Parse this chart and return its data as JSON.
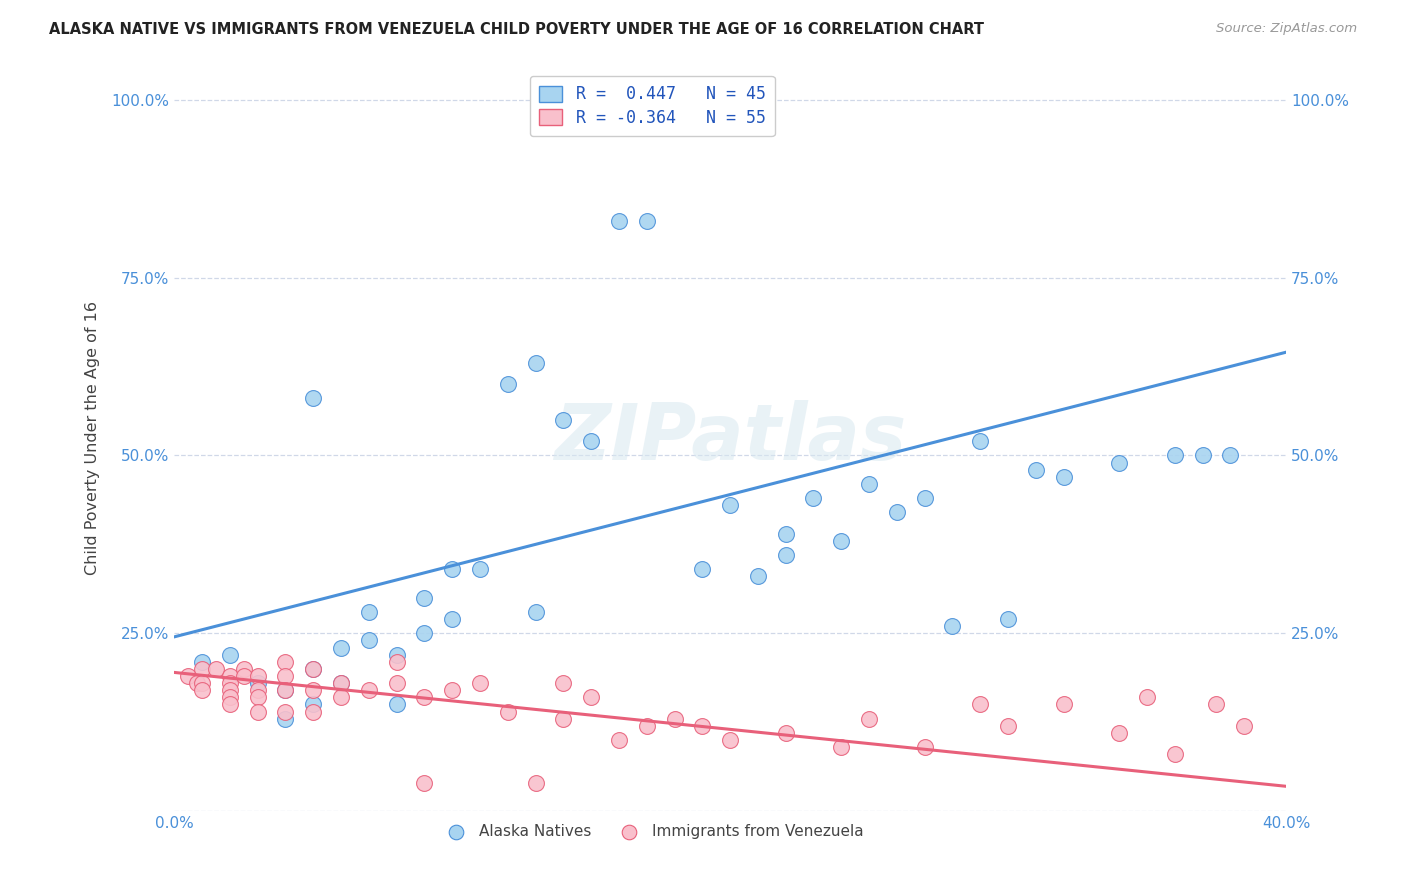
{
  "title": "ALASKA NATIVE VS IMMIGRANTS FROM VENEZUELA CHILD POVERTY UNDER THE AGE OF 16 CORRELATION CHART",
  "source": "Source: ZipAtlas.com",
  "ylabel": "Child Poverty Under the Age of 16",
  "xlim": [
    0.0,
    0.4
  ],
  "ylim": [
    0.0,
    1.05
  ],
  "xticks": [
    0.0,
    0.1,
    0.2,
    0.3,
    0.4
  ],
  "xticklabels": [
    "0.0%",
    "",
    "",
    "",
    "40.0%"
  ],
  "yticks": [
    0.0,
    0.25,
    0.5,
    0.75,
    1.0
  ],
  "yticklabels_left": [
    "",
    "25.0%",
    "50.0%",
    "75.0%",
    "100.0%"
  ],
  "yticklabels_right": [
    "",
    "25.0%",
    "50.0%",
    "75.0%",
    "100.0%"
  ],
  "blue_color": "#a8d4f0",
  "pink_color": "#f9c0cc",
  "blue_line_color": "#4a90d9",
  "pink_line_color": "#e8607a",
  "watermark": "ZIPatlas",
  "legend_label_blue": "Alaska Natives",
  "legend_label_pink": "Immigrants from Venezuela",
  "legend_text_color": "#2255bb",
  "tick_color": "#4a90d9",
  "grid_color": "#d0d8e8",
  "blue_scatter_x": [
    0.01,
    0.02,
    0.03,
    0.04,
    0.04,
    0.05,
    0.05,
    0.06,
    0.06,
    0.07,
    0.07,
    0.08,
    0.08,
    0.09,
    0.09,
    0.1,
    0.1,
    0.11,
    0.12,
    0.13,
    0.13,
    0.14,
    0.15,
    0.16,
    0.17,
    0.19,
    0.2,
    0.21,
    0.22,
    0.23,
    0.24,
    0.25,
    0.26,
    0.27,
    0.28,
    0.3,
    0.32,
    0.34,
    0.36,
    0.37,
    0.38,
    0.05,
    0.22,
    0.29,
    0.31
  ],
  "blue_scatter_y": [
    0.21,
    0.22,
    0.18,
    0.13,
    0.17,
    0.2,
    0.15,
    0.18,
    0.23,
    0.28,
    0.24,
    0.15,
    0.22,
    0.25,
    0.3,
    0.27,
    0.34,
    0.34,
    0.6,
    0.63,
    0.28,
    0.55,
    0.52,
    0.83,
    0.83,
    0.34,
    0.43,
    0.33,
    0.39,
    0.44,
    0.38,
    0.46,
    0.42,
    0.44,
    0.26,
    0.27,
    0.47,
    0.49,
    0.5,
    0.5,
    0.5,
    0.58,
    0.36,
    0.52,
    0.48
  ],
  "pink_scatter_x": [
    0.005,
    0.008,
    0.01,
    0.01,
    0.01,
    0.015,
    0.02,
    0.02,
    0.02,
    0.02,
    0.02,
    0.025,
    0.025,
    0.03,
    0.03,
    0.03,
    0.03,
    0.04,
    0.04,
    0.04,
    0.04,
    0.05,
    0.05,
    0.05,
    0.06,
    0.06,
    0.07,
    0.08,
    0.08,
    0.09,
    0.1,
    0.11,
    0.12,
    0.14,
    0.15,
    0.16,
    0.17,
    0.19,
    0.2,
    0.22,
    0.24,
    0.25,
    0.27,
    0.29,
    0.3,
    0.32,
    0.34,
    0.35,
    0.36,
    0.375,
    0.385,
    0.14,
    0.18,
    0.13,
    0.09
  ],
  "pink_scatter_y": [
    0.19,
    0.18,
    0.2,
    0.18,
    0.17,
    0.2,
    0.19,
    0.18,
    0.17,
    0.16,
    0.15,
    0.2,
    0.19,
    0.19,
    0.17,
    0.16,
    0.14,
    0.21,
    0.19,
    0.17,
    0.14,
    0.2,
    0.17,
    0.14,
    0.18,
    0.16,
    0.17,
    0.21,
    0.18,
    0.16,
    0.17,
    0.18,
    0.14,
    0.13,
    0.16,
    0.1,
    0.12,
    0.12,
    0.1,
    0.11,
    0.09,
    0.13,
    0.09,
    0.15,
    0.12,
    0.15,
    0.11,
    0.16,
    0.08,
    0.15,
    0.12,
    0.18,
    0.13,
    0.04,
    0.04
  ],
  "blue_line_x0": 0.0,
  "blue_line_x1": 0.4,
  "blue_line_y0": 0.245,
  "blue_line_y1": 0.645,
  "pink_line_x0": 0.0,
  "pink_line_x1": 0.4,
  "pink_line_y0": 0.195,
  "pink_line_y1": 0.035
}
